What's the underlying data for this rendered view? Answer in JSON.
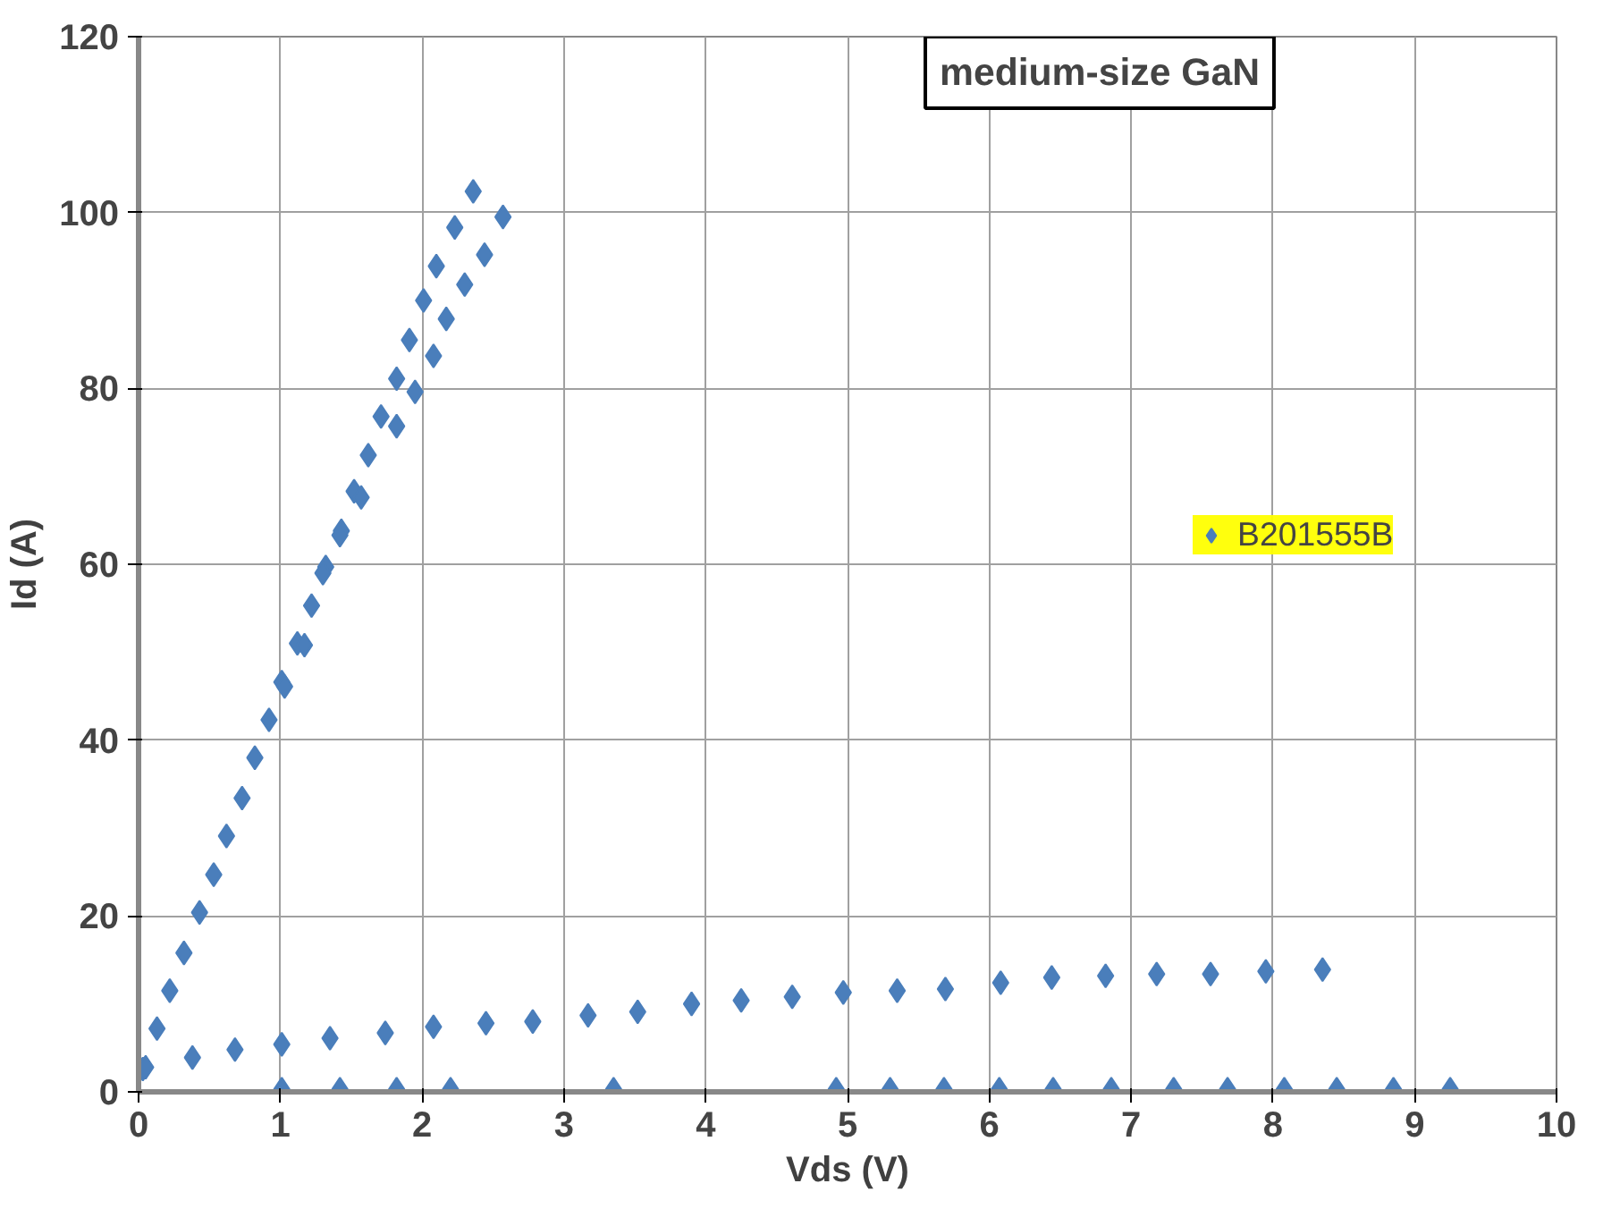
{
  "chart_data": {
    "type": "scatter",
    "title": "medium-size GaN",
    "xlabel": "Vds (V)",
    "ylabel": "Id (A)",
    "xlim": [
      0,
      10
    ],
    "xticks": [
      0,
      1,
      2,
      3,
      4,
      5,
      6,
      7,
      8,
      9,
      10
    ],
    "ylim": [
      0,
      120
    ],
    "yticks": [
      0,
      20,
      40,
      60,
      80,
      100,
      120
    ],
    "grid": true,
    "legend": "right",
    "marker": "diamond",
    "series": [
      {
        "name": "B201555B",
        "color": "#4a7ebb",
        "x": [
          0.03,
          0.13,
          0.22,
          0.32,
          0.43,
          0.53,
          0.62,
          0.73,
          0.82,
          0.92,
          1.01,
          1.12,
          1.22,
          1.32,
          1.43,
          1.52,
          1.62,
          1.71,
          1.82,
          1.91,
          2.01,
          2.1,
          2.23,
          2.36,
          2.57,
          2.44,
          2.3,
          2.17,
          2.08,
          1.95,
          1.82,
          1.57,
          1.42,
          1.3,
          1.17,
          1.03,
          0.05,
          0.38,
          0.68,
          1.01,
          1.35,
          1.74,
          2.08,
          2.45,
          2.78,
          3.17,
          3.52,
          3.9,
          4.25,
          4.61,
          4.97,
          5.35,
          5.69,
          6.08,
          6.44,
          6.82,
          7.18,
          7.56,
          7.95,
          8.35,
          1.01,
          1.42,
          1.82,
          2.2,
          3.35,
          4.92,
          5.3,
          5.68,
          6.07,
          6.45,
          6.86,
          7.3,
          7.68,
          8.08,
          8.45,
          8.85,
          9.25
        ],
        "values": [
          2.6,
          7.2,
          11.5,
          15.8,
          20.4,
          24.7,
          29.1,
          33.4,
          38,
          42.3,
          46.6,
          51,
          55.3,
          59.7,
          63.8,
          68.3,
          72.4,
          76.8,
          81.1,
          85.5,
          90,
          93.9,
          98.3,
          102.4,
          99.5,
          95.2,
          91.8,
          87.9,
          83.7,
          79.6,
          75.7,
          67.6,
          63.3,
          59,
          50.8,
          46.1,
          2.8,
          3.9,
          4.8,
          5.4,
          6.1,
          6.7,
          7.4,
          7.8,
          8.0,
          8.7,
          9.1,
          10.0,
          10.4,
          10.8,
          11.3,
          11.5,
          11.7,
          12.4,
          13.0,
          13.2,
          13.4,
          13.4,
          13.7,
          13.9,
          0.3,
          0.3,
          0.3,
          0.3,
          0.3,
          0.3,
          0.3,
          0.3,
          0.3,
          0.3,
          0.3,
          0.3,
          0.3,
          0.3,
          0.3,
          0.3,
          0.3
        ]
      }
    ]
  }
}
